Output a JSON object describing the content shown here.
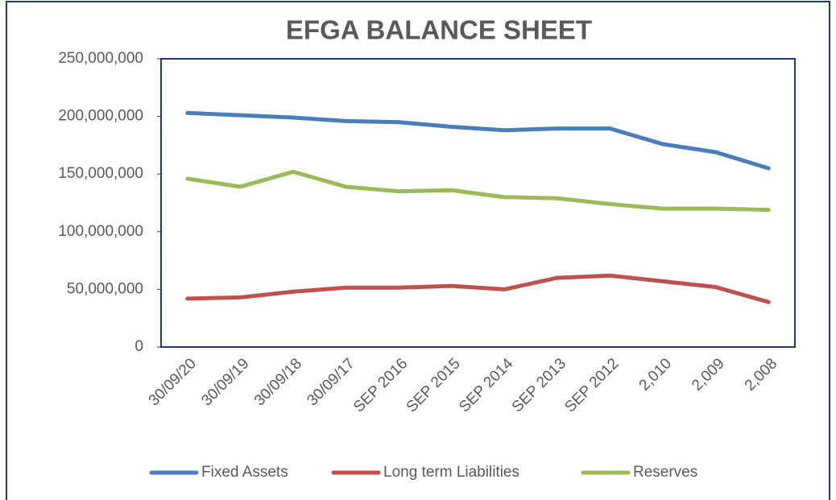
{
  "chart_data": {
    "type": "line",
    "title": "EFGA BALANCE SHEET",
    "categories": [
      "30/09/20",
      "30/09/19",
      "30/09/18",
      "30/09/17",
      "SEP 2016",
      "SEP 2015",
      "SEP 2014",
      "SEP 2013",
      "SEP 2012",
      "2,010",
      "2,009",
      "2,008"
    ],
    "series": [
      {
        "name": "Fixed Assets",
        "color": "#4a7ebb",
        "values": [
          203000000,
          201000000,
          199000000,
          196000000,
          195000000,
          191000000,
          188000000,
          189500000,
          189500000,
          176000000,
          169000000,
          155000000
        ]
      },
      {
        "name": "Long term Liabilities",
        "color": "#c0504d",
        "values": [
          42000000,
          43000000,
          48000000,
          51500000,
          51500000,
          53000000,
          50000000,
          60000000,
          62000000,
          57000000,
          52000000,
          39000000
        ]
      },
      {
        "name": "Reserves",
        "color": "#9bbb59",
        "values": [
          146000000,
          139000000,
          152000000,
          139000000,
          135000000,
          136000000,
          130000000,
          129000000,
          124000000,
          120000000,
          120000000,
          119000000
        ]
      }
    ],
    "ylim": [
      0,
      250000000
    ],
    "yticks": [
      0,
      {
        "value": 50000000,
        "label": "50,000,000"
      },
      {
        "value": 100000000,
        "label": "100,000,000"
      },
      {
        "value": 150000000,
        "label": "150,000,000"
      },
      {
        "value": 200000000,
        "label": "200,000,000"
      },
      {
        "value": 250000000,
        "label": "250,000,000"
      }
    ],
    "legend": "bottom"
  }
}
